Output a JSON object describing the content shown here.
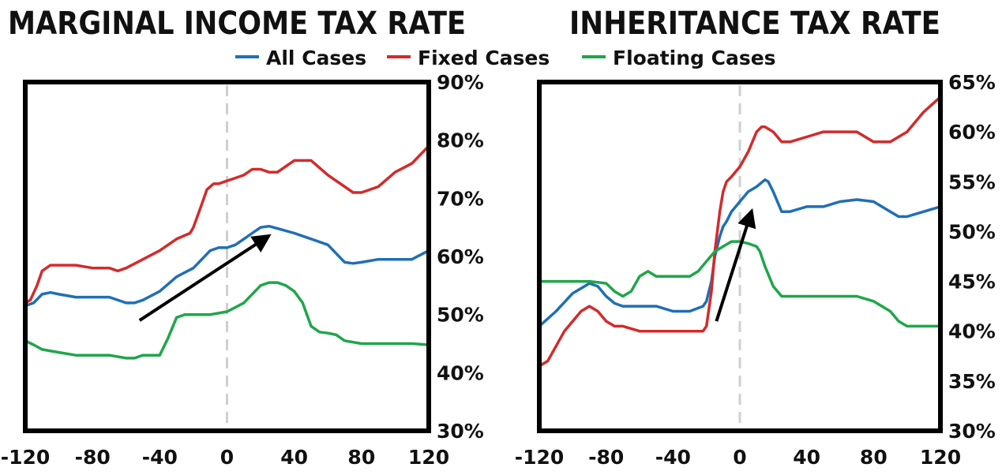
{
  "legend": [
    {
      "label": "All Cases",
      "color": "#1f6fb5"
    },
    {
      "label": "Fixed Cases",
      "color": "#d42a2a"
    },
    {
      "label": "Floating Cases",
      "color": "#1fa64a"
    }
  ],
  "chart_data": [
    {
      "type": "line",
      "title": "MARGINAL INCOME TAX RATE",
      "xlim": [
        -120,
        120
      ],
      "ylim": [
        30,
        90
      ],
      "x_ticks": [
        -120,
        -80,
        -40,
        0,
        40,
        80,
        120
      ],
      "x_tick_labels": [
        "-120",
        "-80",
        "-40",
        "0",
        "40",
        "80",
        "120"
      ],
      "y_ticks": [
        30,
        40,
        50,
        60,
        70,
        80,
        90
      ],
      "y_tick_labels": [
        "30%",
        "40%",
        "50%",
        "60%",
        "70%",
        "80%",
        "90%"
      ],
      "y_axis_side": "right",
      "reference_line_x": 0,
      "series": [
        {
          "name": "All Cases",
          "color": "#1f6fb5",
          "x": [
            -120,
            -115,
            -110,
            -105,
            -100,
            -90,
            -80,
            -70,
            -60,
            -55,
            -50,
            -40,
            -30,
            -20,
            -15,
            -10,
            -5,
            0,
            5,
            10,
            15,
            20,
            25,
            30,
            40,
            50,
            60,
            70,
            75,
            80,
            90,
            100,
            110,
            120
          ],
          "y": [
            51.5,
            52,
            53.5,
            53.8,
            53.5,
            53,
            53,
            53,
            52,
            52,
            52.5,
            54,
            56.5,
            58,
            59.5,
            61,
            61.5,
            61.5,
            62,
            63,
            64,
            65,
            65.2,
            64.8,
            64,
            63,
            62,
            59,
            58.8,
            59,
            59.5,
            59.5,
            59.5,
            61
          ]
        },
        {
          "name": "Fixed Cases",
          "color": "#d42a2a",
          "x": [
            -120,
            -117,
            -113,
            -110,
            -105,
            -100,
            -90,
            -80,
            -70,
            -65,
            -60,
            -50,
            -40,
            -30,
            -22,
            -20,
            -15,
            -12,
            -8,
            -5,
            0,
            5,
            10,
            15,
            20,
            25,
            30,
            40,
            50,
            60,
            70,
            75,
            80,
            90,
            100,
            110,
            120
          ],
          "y": [
            52,
            52.5,
            55,
            57.5,
            58.5,
            58.5,
            58.5,
            58,
            58,
            57.5,
            58,
            59.5,
            61,
            63,
            64,
            65,
            69,
            71.5,
            72.5,
            72.5,
            73,
            73.5,
            74,
            75,
            75,
            74.5,
            74.5,
            76.5,
            76.5,
            74,
            72,
            71,
            71,
            72,
            74.5,
            76,
            79
          ]
        },
        {
          "name": "Floating Cases",
          "color": "#1fa64a",
          "x": [
            -120,
            -115,
            -110,
            -100,
            -90,
            -80,
            -70,
            -60,
            -55,
            -50,
            -45,
            -40,
            -35,
            -30,
            -25,
            -20,
            -10,
            0,
            10,
            20,
            25,
            30,
            35,
            40,
            45,
            50,
            55,
            60,
            65,
            70,
            80,
            90,
            100,
            110,
            120
          ],
          "y": [
            45.5,
            44.8,
            44,
            43.5,
            43,
            43,
            43,
            42.5,
            42.5,
            43,
            43,
            43,
            46,
            49.5,
            50,
            50,
            50,
            50.5,
            52,
            55,
            55.5,
            55.5,
            55,
            54,
            52,
            48,
            47,
            46.8,
            46.5,
            45.5,
            45,
            45,
            45,
            45,
            44.8
          ]
        }
      ],
      "annotation": "arrow",
      "arrow": {
        "from": [
          -52,
          49
        ],
        "to": [
          22,
          63
        ]
      }
    },
    {
      "type": "line",
      "title": "INHERITANCE TAX RATE",
      "xlim": [
        -120,
        120
      ],
      "ylim": [
        30,
        65
      ],
      "x_ticks": [
        -120,
        -80,
        -40,
        0,
        40,
        80,
        120
      ],
      "x_tick_labels": [
        "-120",
        "-80",
        "-40",
        "0",
        "40",
        "80",
        "120"
      ],
      "y_ticks": [
        30,
        35,
        40,
        45,
        50,
        55,
        60,
        65
      ],
      "y_tick_labels": [
        "30%",
        "35%",
        "40%",
        "45%",
        "50%",
        "55%",
        "60%",
        "65%"
      ],
      "y_axis_side": "right",
      "reference_line_x": 0,
      "series": [
        {
          "name": "All Cases",
          "color": "#1f6fb5",
          "x": [
            -120,
            -110,
            -100,
            -90,
            -85,
            -80,
            -75,
            -70,
            -60,
            -50,
            -40,
            -30,
            -22,
            -20,
            -17,
            -15,
            -12,
            -10,
            -8,
            -5,
            0,
            5,
            10,
            15,
            17,
            20,
            25,
            30,
            40,
            50,
            60,
            70,
            80,
            90,
            95,
            100,
            110,
            120
          ],
          "y": [
            40.5,
            42,
            43.8,
            44.8,
            44.5,
            43.5,
            42.8,
            42.5,
            42.5,
            42.5,
            42,
            42,
            42.5,
            43,
            45,
            47.5,
            49.5,
            50.5,
            51,
            52,
            53,
            54,
            54.5,
            55.2,
            55,
            54,
            52,
            52,
            52.5,
            52.5,
            53,
            53.2,
            53,
            52,
            51.5,
            51.5,
            52,
            52.5
          ]
        },
        {
          "name": "Fixed Cases",
          "color": "#d42a2a",
          "x": [
            -120,
            -115,
            -110,
            -105,
            -100,
            -95,
            -90,
            -85,
            -80,
            -75,
            -70,
            -60,
            -50,
            -40,
            -30,
            -22,
            -20,
            -17,
            -15,
            -12,
            -10,
            -8,
            -5,
            0,
            5,
            10,
            13,
            15,
            20,
            25,
            30,
            40,
            50,
            60,
            70,
            80,
            85,
            90,
            100,
            110,
            120
          ],
          "y": [
            36.5,
            37,
            38.5,
            40,
            41,
            42,
            42.5,
            42,
            41,
            40.5,
            40.5,
            40,
            40,
            40,
            40,
            40,
            40.5,
            44,
            48,
            52,
            54,
            55,
            55.5,
            56.5,
            58,
            60,
            60.5,
            60.5,
            60,
            59,
            59,
            59.5,
            60,
            60,
            60,
            59,
            59,
            59,
            60,
            62,
            63.5
          ]
        },
        {
          "name": "Floating Cases",
          "color": "#1fa64a",
          "x": [
            -120,
            -110,
            -100,
            -90,
            -80,
            -75,
            -70,
            -65,
            -60,
            -55,
            -50,
            -40,
            -35,
            -30,
            -25,
            -20,
            -15,
            -10,
            -5,
            0,
            5,
            10,
            12,
            15,
            20,
            25,
            30,
            40,
            50,
            60,
            70,
            80,
            90,
            95,
            100,
            110,
            120
          ],
          "y": [
            45,
            45,
            45,
            45,
            44.8,
            44,
            43.5,
            44,
            45.5,
            46,
            45.5,
            45.5,
            45.5,
            45.5,
            46,
            47,
            48,
            48.5,
            49,
            49,
            48.8,
            48.5,
            48,
            46.5,
            44.5,
            43.5,
            43.5,
            43.5,
            43.5,
            43.5,
            43.5,
            43,
            42,
            41,
            40.5,
            40.5,
            40.5
          ]
        }
      ],
      "annotation": "arrow",
      "arrow": {
        "from": [
          -14,
          41
        ],
        "to": [
          6,
          51.5
        ]
      }
    }
  ]
}
